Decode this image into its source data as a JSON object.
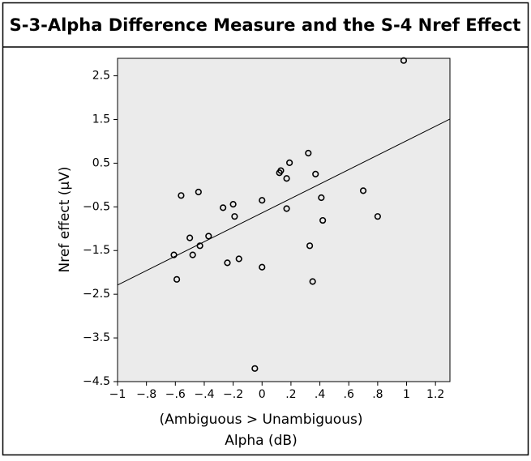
{
  "chart_data": {
    "type": "scatter",
    "title": "S-3-Alpha Difference Measure and the S-4 Nref Effect",
    "x_label": [
      "(Ambiguous > Unambiguous)",
      "Alpha (dB)"
    ],
    "y_label": "Nref effect (µV)",
    "series": [
      {
        "color": "#000000",
        "x": [
          0.98,
          0.32,
          0.13,
          0.12,
          0.19,
          0.17,
          0.37,
          0,
          0.41,
          0.7,
          0.17,
          0.42,
          0.8,
          -0.56,
          -0.44,
          -0.2,
          -0.27,
          -0.19,
          -0.5,
          -0.37,
          -0.43,
          -0.48,
          -0.61,
          0.33,
          -0.16,
          -0.24,
          0,
          -0.59,
          0.35,
          -0.05
        ],
        "values": [
          2.85,
          0.73,
          0.33,
          0.28,
          0.51,
          0.15,
          0.25,
          -0.35,
          -0.29,
          -0.13,
          -0.54,
          -0.81,
          -0.72,
          -0.24,
          -0.16,
          -0.44,
          -0.52,
          -0.72,
          -1.21,
          -1.17,
          -1.39,
          -1.6,
          -1.6,
          -1.39,
          -1.69,
          -1.78,
          -1.88,
          -2.16,
          -2.21,
          -4.2
        ]
      }
    ],
    "trend_line": {
      "x": [
        -1,
        1.3
      ],
      "y": [
        -2.29,
        1.51
      ]
    },
    "xlim": [
      -1,
      1.3
    ],
    "ylim": [
      -4.5,
      2.9
    ],
    "xticks": [
      {
        "value": -1,
        "label": "−1"
      },
      {
        "value": -0.8,
        "label": "−.8"
      },
      {
        "value": -0.6,
        "label": "−.6"
      },
      {
        "value": -0.4,
        "label": "−.4"
      },
      {
        "value": -0.2,
        "label": "−.2"
      },
      0,
      {
        "value": 0.2,
        "label": ".2"
      },
      {
        "value": 0.4,
        "label": ".4"
      },
      {
        "value": 0.6,
        "label": ".6"
      },
      {
        "value": 0.8,
        "label": ".8"
      },
      1,
      1.2
    ],
    "yticks": [
      2.5,
      1.5,
      0.5,
      {
        "value": -0.5,
        "label": "−0.5"
      },
      {
        "value": -1.5,
        "label": "−1.5"
      },
      {
        "value": -2.5,
        "label": "−2.5"
      },
      {
        "value": -3.5,
        "label": "−3.5"
      },
      {
        "value": -4.5,
        "label": "−4.5"
      }
    ]
  }
}
